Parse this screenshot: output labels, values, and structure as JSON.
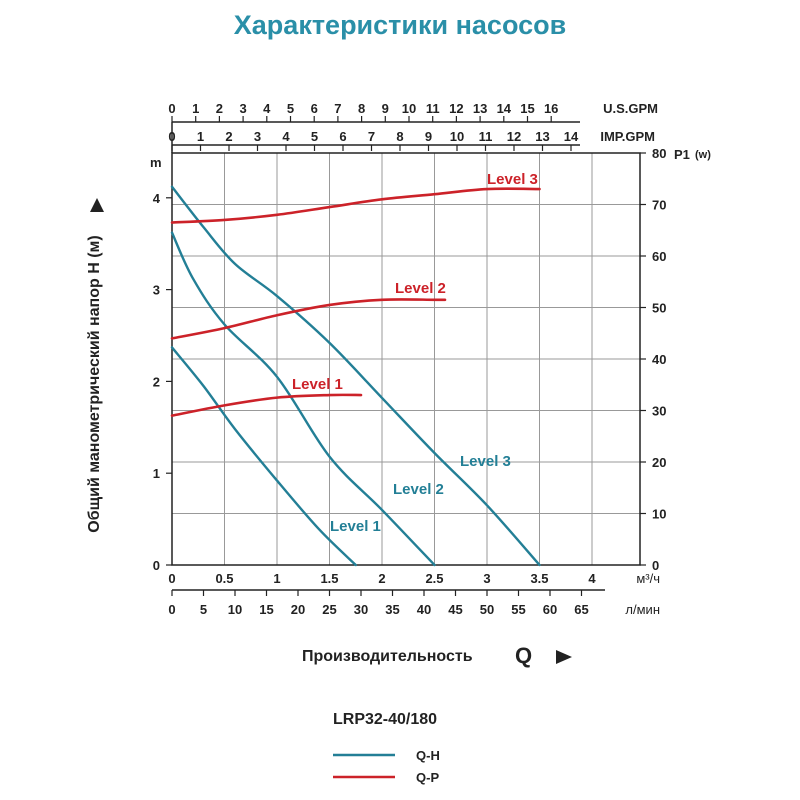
{
  "page": {
    "title": "Характеристики насосов",
    "model": "LRP32-40/180",
    "legend": [
      {
        "label": "Q-H",
        "color": "#237f96"
      },
      {
        "label": "Q-P",
        "color": "#cc2229"
      }
    ],
    "colors": {
      "title": "#2a8fa8",
      "qh": "#237f96",
      "qp": "#cc2229",
      "grid": "#999999"
    }
  },
  "chart_data": {
    "type": "line",
    "title": "Характеристики насосов",
    "xlabel": "Производительность",
    "xlabel_symbol": "Q",
    "ylabel": "Общий манометрический напор H (м)",
    "y_unit": "m",
    "y2_label": "P1",
    "y2_unit": "(w)",
    "xlim": [
      0,
      4.5
    ],
    "ylim": [
      0,
      4.5
    ],
    "y2lim": [
      0,
      80
    ],
    "axes": {
      "m3h": {
        "unit": "м³/ч",
        "ticks": [
          0,
          0.5,
          1,
          1.5,
          2,
          2.5,
          3,
          3.5,
          4
        ],
        "labels": [
          "0",
          "0.5",
          "1",
          "1.5",
          "2",
          "2.5",
          "3",
          "3.5",
          "4"
        ]
      },
      "lmin": {
        "unit": "л/мин",
        "ticks": [
          0,
          5,
          10,
          15,
          20,
          25,
          30,
          35,
          40,
          45,
          50,
          55,
          60,
          65
        ],
        "labels": [
          "0",
          "5",
          "10",
          "15",
          "20",
          "25",
          "30",
          "35",
          "40",
          "45",
          "50",
          "55",
          "60",
          "65"
        ]
      },
      "usgpm": {
        "unit": "U.S.GPM",
        "ticks": [
          0,
          1,
          2,
          3,
          4,
          5,
          6,
          7,
          8,
          9,
          10,
          11,
          12,
          13,
          14,
          15,
          16
        ],
        "labels": [
          "0",
          "1",
          "2",
          "3",
          "4",
          "5",
          "6",
          "7",
          "8",
          "9",
          "10",
          "11",
          "12",
          "13",
          "14",
          "15",
          "16"
        ]
      },
      "impgpm": {
        "unit": "IMP.GPM",
        "ticks": [
          0,
          1,
          2,
          3,
          4,
          5,
          6,
          7,
          8,
          9,
          10,
          11,
          12,
          13,
          14
        ],
        "labels": [
          "0",
          "1",
          "2",
          "3",
          "4",
          "5",
          "6",
          "7",
          "8",
          "9",
          "10",
          "11",
          "12",
          "13",
          "14"
        ]
      },
      "head": {
        "ticks": [
          0,
          1,
          2,
          3,
          4
        ],
        "labels": [
          "0",
          "1",
          "2",
          "3",
          "4"
        ]
      },
      "power": {
        "ticks": [
          0,
          10,
          20,
          30,
          40,
          50,
          60,
          70,
          80
        ],
        "labels": [
          "0",
          "10",
          "20",
          "30",
          "40",
          "50",
          "60",
          "70",
          "80"
        ]
      }
    },
    "grid": true,
    "series": [
      {
        "name": "Level 1",
        "kind": "Q-H",
        "x": [
          0,
          0.3,
          0.6,
          1.0,
          1.4,
          1.75
        ],
        "y": [
          2.37,
          1.95,
          1.48,
          0.92,
          0.39,
          0
        ]
      },
      {
        "name": "Level 2",
        "kind": "Q-H",
        "x": [
          0,
          0.2,
          0.5,
          1.0,
          1.5,
          2.0,
          2.5
        ],
        "y": [
          3.62,
          3.12,
          2.62,
          2.05,
          1.18,
          0.6,
          0
        ]
      },
      {
        "name": "Level 3",
        "kind": "Q-H",
        "x": [
          0,
          0.3,
          0.6,
          1.0,
          1.5,
          2.0,
          2.5,
          3.0,
          3.5
        ],
        "y": [
          4.12,
          3.68,
          3.28,
          2.93,
          2.42,
          1.82,
          1.22,
          0.65,
          0
        ]
      },
      {
        "name": "Level 1",
        "kind": "Q-P",
        "x": [
          0,
          0.5,
          1.0,
          1.5,
          1.8
        ],
        "y2": [
          29,
          31,
          32.5,
          33,
          33
        ]
      },
      {
        "name": "Level 2",
        "kind": "Q-P",
        "x": [
          0,
          0.5,
          1.0,
          1.5,
          2.0,
          2.5,
          2.6
        ],
        "y2": [
          44,
          46,
          48.5,
          50.5,
          51.5,
          51.5,
          51.5
        ]
      },
      {
        "name": "Level 3",
        "kind": "Q-P",
        "x": [
          0,
          0.5,
          1.0,
          1.5,
          2.0,
          2.5,
          3.0,
          3.5
        ],
        "y2": [
          66.5,
          67,
          68,
          69.5,
          71,
          72,
          73,
          73
        ]
      }
    ],
    "labels": [
      {
        "text": "Level 1",
        "kind": "Q-H"
      },
      {
        "text": "Level 2",
        "kind": "Q-H"
      },
      {
        "text": "Level 3",
        "kind": "Q-H"
      },
      {
        "text": "Level 1",
        "kind": "Q-P"
      },
      {
        "text": "Level 2",
        "kind": "Q-P"
      },
      {
        "text": "Level 3",
        "kind": "Q-P"
      }
    ]
  }
}
